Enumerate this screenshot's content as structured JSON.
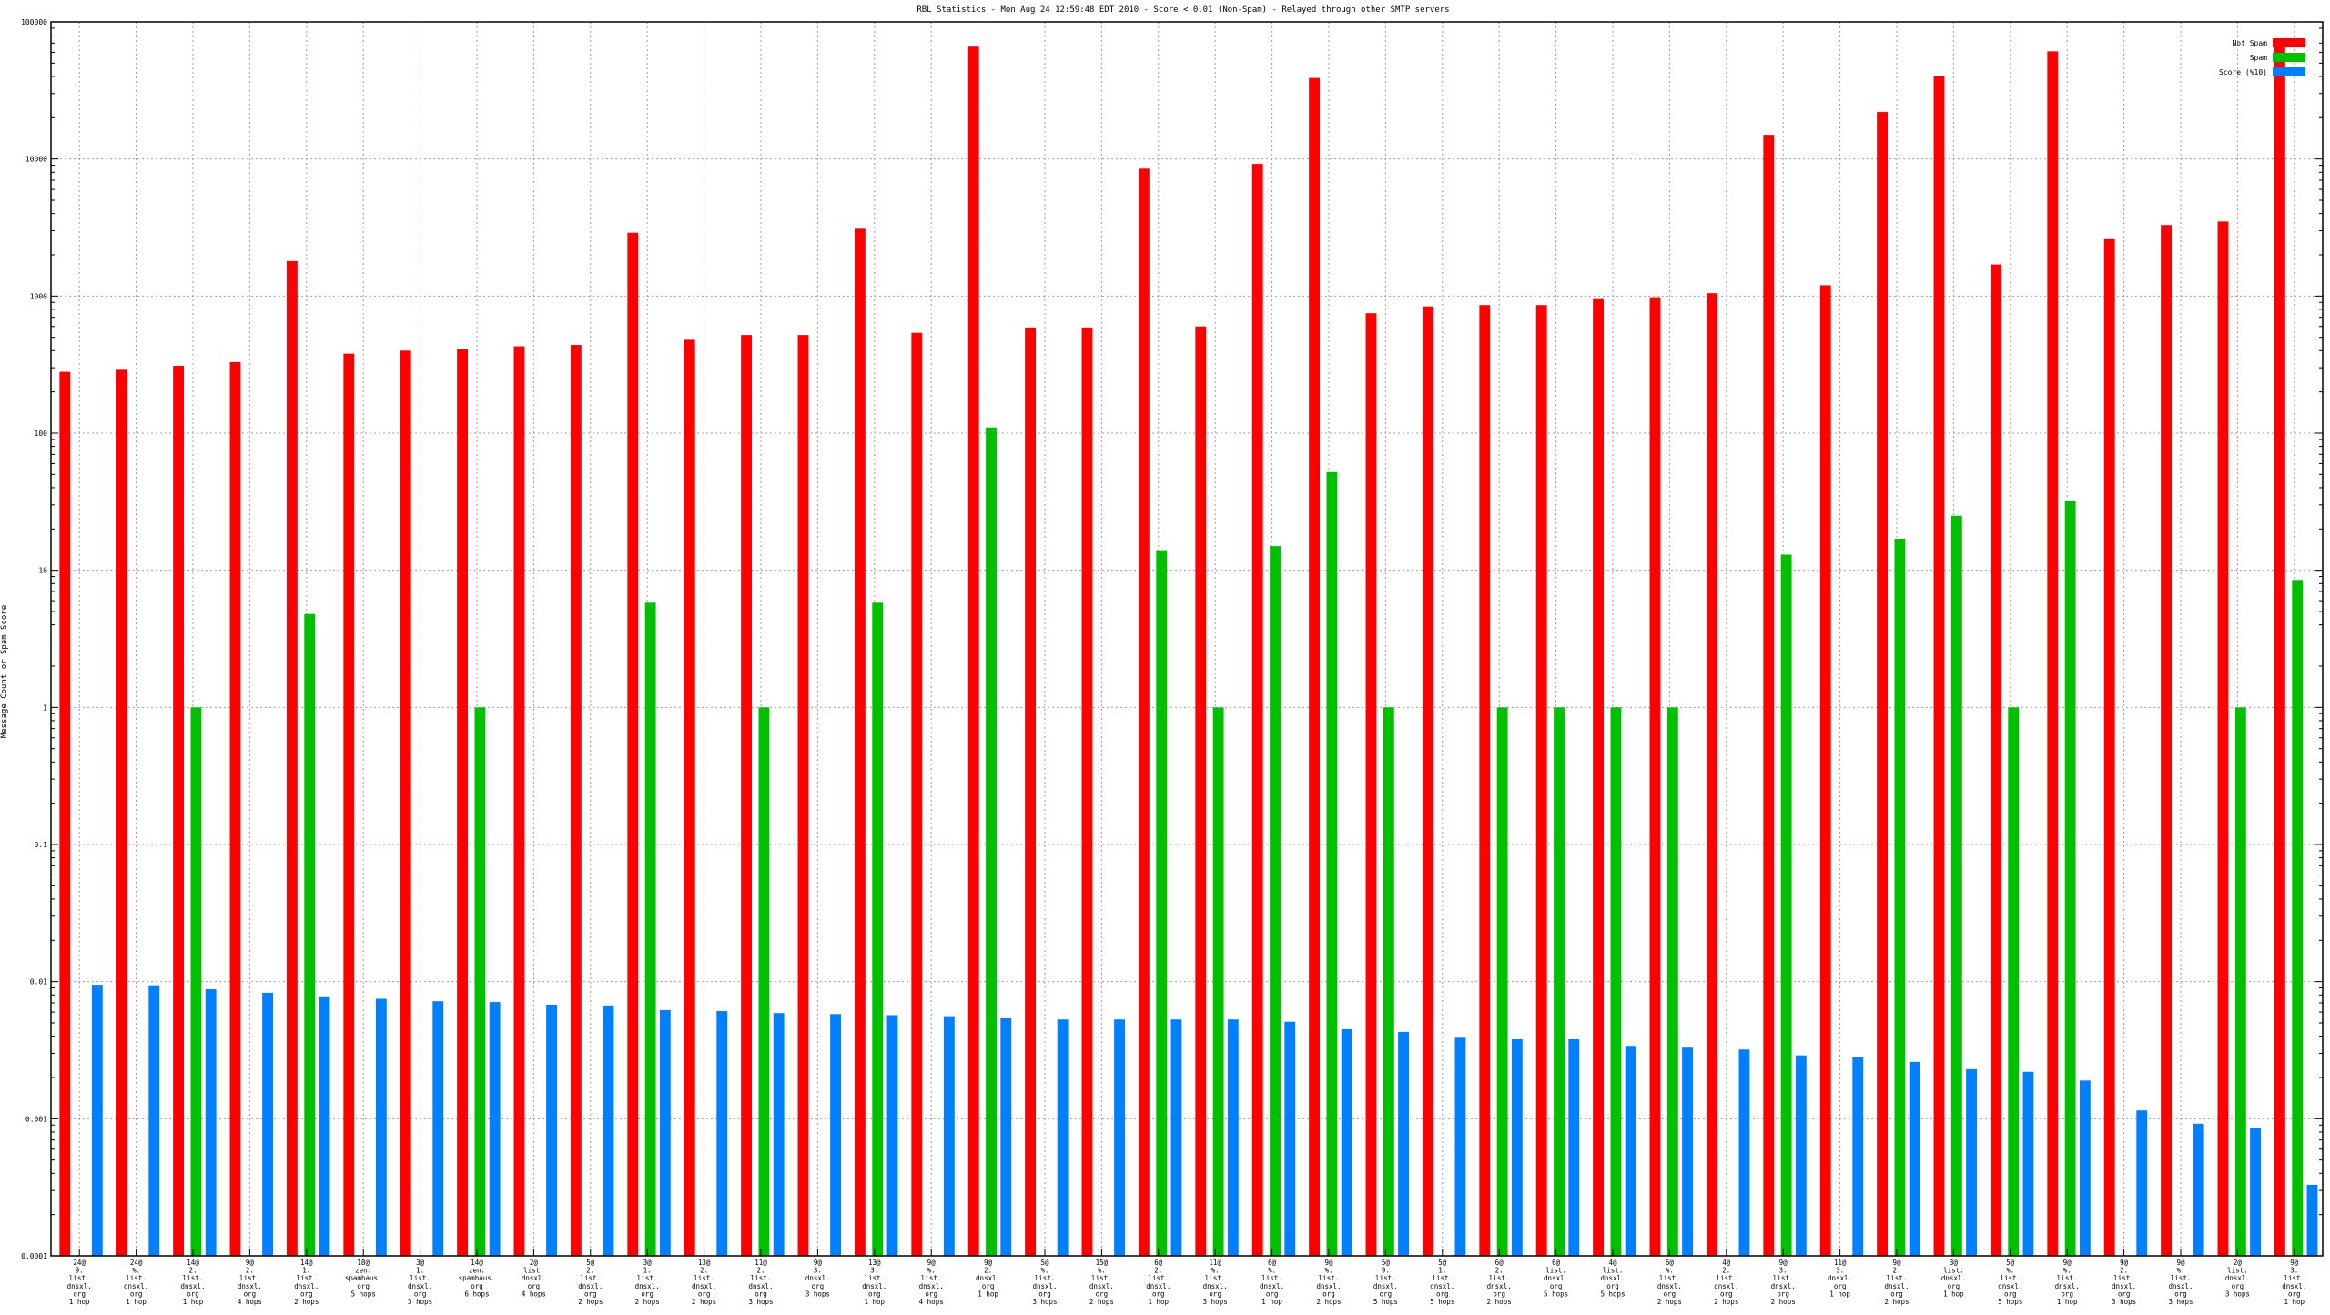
{
  "chart_data": {
    "type": "bar",
    "title": "RBL Statistics - Mon Aug 24 12:59:48 EDT 2010 - Score < 0.01 (Non-Spam) - Relayed through other SMTP servers",
    "xlabel": "",
    "ylabel": "Message Count or Spam Score",
    "yscale": "log",
    "ylim": [
      0.0001,
      100000
    ],
    "grid": true,
    "legend_position": "top-right",
    "yticks": [
      "0.0001",
      "0.001",
      "0.01",
      "0.1",
      "1",
      "10",
      "100",
      "1000",
      "10000",
      "100000"
    ],
    "categories": [
      [
        "24@",
        "9.",
        "list.",
        "dnsxl.",
        "org",
        "1 hop"
      ],
      [
        "24@",
        "%.",
        "list.",
        "dnsxl.",
        "org",
        "1 hop"
      ],
      [
        "14@",
        "2.",
        "list.",
        "dnsxl.",
        "org",
        "1 hop"
      ],
      [
        "9@",
        "2.",
        "list.",
        "dnsxl.",
        "org",
        "4 hops"
      ],
      [
        "14@",
        "1.",
        "list.",
        "dnsxl.",
        "org",
        "2 hops"
      ],
      [
        "18@",
        "zen.",
        "spamhaus.",
        "org",
        "5 hops"
      ],
      [
        "3@",
        "1.",
        "list.",
        "dnsxl.",
        "org",
        "3 hops"
      ],
      [
        "14@",
        "zen.",
        "spamhaus.",
        "org",
        "6 hops"
      ],
      [
        "2@",
        "list.",
        "dnsxl.",
        "org",
        "4 hops"
      ],
      [
        "5@",
        "2.",
        "list.",
        "dnsxl.",
        "org",
        "2 hops"
      ],
      [
        "3@",
        "1.",
        "list.",
        "dnsxl.",
        "org",
        "2 hops"
      ],
      [
        "13@",
        "2.",
        "list.",
        "dnsxl.",
        "org",
        "2 hops"
      ],
      [
        "11@",
        "2.",
        "list.",
        "dnsxl.",
        "org",
        "3 hops"
      ],
      [
        "9@",
        "3.",
        "dnsxl.",
        "org",
        "3 hops"
      ],
      [
        "13@",
        "3.",
        "list.",
        "dnsxl.",
        "org",
        "1 hop"
      ],
      [
        "9@",
        "%.",
        "list.",
        "dnsxl.",
        "org",
        "4 hops"
      ],
      [
        "9@",
        "2.",
        "dnsxl.",
        "org",
        "1 hop"
      ],
      [
        "5@",
        "%.",
        "list.",
        "dnsxl.",
        "org",
        "3 hops"
      ],
      [
        "15@",
        "%.",
        "list.",
        "dnsxl.",
        "org",
        "2 hops"
      ],
      [
        "6@",
        "2.",
        "list.",
        "dnsxl.",
        "org",
        "1 hop"
      ],
      [
        "11@",
        "%.",
        "list.",
        "dnsxl.",
        "org",
        "3 hops"
      ],
      [
        "6@",
        "%.",
        "list.",
        "dnsxl.",
        "org",
        "1 hop"
      ],
      [
        "9@",
        "%.",
        "list.",
        "dnsxl.",
        "org",
        "2 hops"
      ],
      [
        "5@",
        "9.",
        "list.",
        "dnsxl.",
        "org",
        "5 hops"
      ],
      [
        "5@",
        "1.",
        "list.",
        "dnsxl.",
        "org",
        "5 hops"
      ],
      [
        "6@",
        "2.",
        "list.",
        "dnsxl.",
        "org",
        "2 hops"
      ],
      [
        "6@",
        "list.",
        "dnsxl.",
        "org",
        "5 hops"
      ],
      [
        "4@",
        "list.",
        "dnsxl.",
        "org",
        "5 hops"
      ],
      [
        "6@",
        "%.",
        "list.",
        "dnsxl.",
        "org",
        "2 hops"
      ],
      [
        "4@",
        "2.",
        "list.",
        "dnsxl.",
        "org",
        "2 hops"
      ],
      [
        "9@",
        "3.",
        "list.",
        "dnsxl.",
        "org",
        "2 hops"
      ],
      [
        "11@",
        "3.",
        "dnsxl.",
        "org",
        "1 hop"
      ],
      [
        "9@",
        "2.",
        "list.",
        "dnsxl.",
        "org",
        "2 hops"
      ],
      [
        "3@",
        "list.",
        "dnsxl.",
        "org",
        "1 hop"
      ],
      [
        "5@",
        "%.",
        "list.",
        "dnsxl.",
        "org",
        "5 hops"
      ],
      [
        "9@",
        "%.",
        "list.",
        "dnsxl.",
        "org",
        "1 hop"
      ],
      [
        "9@",
        "2.",
        "list.",
        "dnsxl.",
        "org",
        "3 hops"
      ],
      [
        "9@",
        "%.",
        "list.",
        "dnsxl.",
        "org",
        "3 hops"
      ],
      [
        "2@",
        "list.",
        "dnsxl.",
        "org",
        "3 hops"
      ],
      [
        "9@",
        "3.",
        "list.",
        "dnsxl.",
        "org",
        "1 hop"
      ]
    ],
    "series": [
      {
        "name": "Not Spam",
        "color": "#ff0000",
        "values": [
          280,
          290,
          310,
          330,
          1800,
          380,
          400,
          410,
          430,
          440,
          2900,
          480,
          520,
          520,
          3100,
          540,
          66000,
          590,
          590,
          8500,
          600,
          9200,
          39000,
          750,
          840,
          860,
          860,
          950,
          980,
          1050,
          15000,
          1200,
          22000,
          40000,
          1700,
          61000,
          2600,
          3300,
          3500,
          70000
        ]
      },
      {
        "name": "Spam",
        "color": "#00c000",
        "values": [
          null,
          null,
          1,
          null,
          4.8,
          null,
          null,
          1,
          null,
          null,
          5.8,
          null,
          1,
          null,
          5.8,
          null,
          110,
          null,
          null,
          14,
          1,
          15,
          52,
          1,
          null,
          1,
          1,
          1,
          1,
          null,
          13,
          null,
          17,
          25,
          1,
          32,
          null,
          null,
          1,
          8.5
        ]
      },
      {
        "name": "Score (%10)",
        "color": "#0080ff",
        "values": [
          0.0095,
          0.0094,
          0.0088,
          0.0083,
          0.0077,
          0.0075,
          0.0072,
          0.0071,
          0.0068,
          0.0067,
          0.0062,
          0.0061,
          0.0059,
          0.0058,
          0.0057,
          0.0056,
          0.0054,
          0.0053,
          0.0053,
          0.0053,
          0.0053,
          0.0051,
          0.0045,
          0.0043,
          0.0039,
          0.0038,
          0.0038,
          0.0034,
          0.0033,
          0.0032,
          0.0029,
          0.0028,
          0.0026,
          0.0023,
          0.0022,
          0.0019,
          0.00115,
          0.00092,
          0.00085,
          0.00033
        ]
      }
    ]
  }
}
